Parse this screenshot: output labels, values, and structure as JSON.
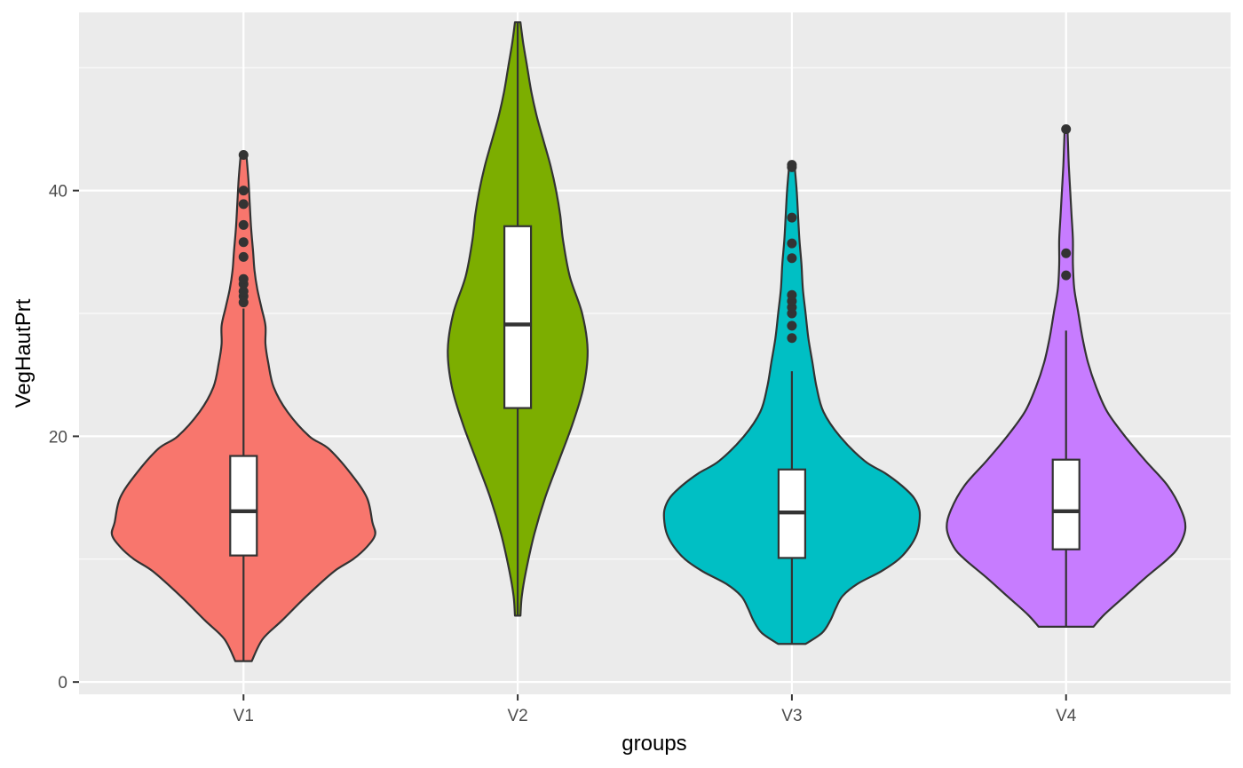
{
  "chart_data": {
    "type": "violin",
    "xlabel": "groups",
    "ylabel": "VegHautPrt",
    "ylim": [
      -1,
      54.5
    ],
    "yticks": [
      0,
      20,
      40
    ],
    "grid": true,
    "background": "#EBEBEB",
    "groups": [
      {
        "name": "V1",
        "color": "#F8766D",
        "violin": {
          "y": [
            1.7,
            3.5,
            5,
            7,
            9,
            10,
            11,
            12,
            13,
            15,
            17,
            19,
            20,
            22,
            24,
            26,
            27.5,
            29,
            30.5,
            32,
            33.5,
            35,
            37,
            39,
            41,
            43
          ],
          "half_width": [
            0.06,
            0.14,
            0.28,
            0.46,
            0.66,
            0.8,
            0.9,
            0.96,
            0.94,
            0.9,
            0.78,
            0.62,
            0.48,
            0.32,
            0.22,
            0.18,
            0.16,
            0.16,
            0.13,
            0.1,
            0.08,
            0.07,
            0.055,
            0.045,
            0.035,
            0.02
          ]
        },
        "box": {
          "lower_whisker": 1.7,
          "q1": 10.3,
          "median": 13.9,
          "q3": 18.4,
          "upper_whisker": 30.4
        },
        "outliers": [
          30.9,
          31.4,
          31.8,
          32.4,
          32.8,
          34.6,
          35.8,
          37.2,
          38.9,
          40.0,
          42.9
        ]
      },
      {
        "name": "V2",
        "color": "#7CAE00",
        "violin": {
          "y": [
            5.4,
            7,
            9,
            12,
            15,
            18,
            21,
            24,
            27,
            30,
            33,
            36,
            38,
            40,
            42,
            44,
            46,
            48,
            50,
            52,
            53.7
          ],
          "half_width": [
            0.02,
            0.03,
            0.06,
            0.12,
            0.2,
            0.3,
            0.4,
            0.48,
            0.51,
            0.47,
            0.38,
            0.33,
            0.31,
            0.28,
            0.24,
            0.19,
            0.14,
            0.1,
            0.07,
            0.04,
            0.02
          ]
        },
        "box": {
          "lower_whisker": 5.4,
          "q1": 22.3,
          "median": 29.1,
          "q3": 37.1,
          "upper_whisker": 53.7
        },
        "outliers": []
      },
      {
        "name": "V3",
        "color": "#00BFC4",
        "violin": {
          "y": [
            3.1,
            4,
            5,
            6,
            7,
            8,
            9,
            10,
            11,
            12,
            13,
            14,
            15,
            16,
            17,
            18,
            20,
            22,
            24,
            26,
            28,
            30,
            32,
            34,
            36,
            38,
            40,
            42
          ],
          "half_width": [
            0.1,
            0.22,
            0.28,
            0.32,
            0.37,
            0.48,
            0.65,
            0.78,
            0.86,
            0.91,
            0.93,
            0.93,
            0.89,
            0.8,
            0.68,
            0.53,
            0.35,
            0.23,
            0.18,
            0.15,
            0.12,
            0.1,
            0.08,
            0.07,
            0.055,
            0.045,
            0.035,
            0.02
          ]
        },
        "box": {
          "lower_whisker": 3.1,
          "q1": 10.1,
          "median": 13.8,
          "q3": 17.3,
          "upper_whisker": 25.3
        },
        "outliers": [
          28.0,
          29.0,
          30.0,
          30.5,
          31.0,
          31.5,
          34.5,
          35.7,
          37.8,
          41.9,
          42.1
        ]
      },
      {
        "name": "V4",
        "color": "#C77CFF",
        "violin": {
          "y": [
            4.5,
            5.5,
            7,
            8.5,
            10,
            11,
            12.5,
            14,
            16,
            18,
            20,
            22,
            24,
            26,
            28,
            30,
            32,
            34,
            36,
            38,
            40,
            42,
            43.5,
            45.1
          ],
          "half_width": [
            0.2,
            0.28,
            0.43,
            0.58,
            0.74,
            0.82,
            0.87,
            0.84,
            0.74,
            0.58,
            0.43,
            0.3,
            0.22,
            0.16,
            0.12,
            0.09,
            0.06,
            0.05,
            0.05,
            0.04,
            0.03,
            0.02,
            0.015,
            0.01
          ]
        },
        "box": {
          "lower_whisker": 4.5,
          "q1": 10.8,
          "median": 13.9,
          "q3": 18.1,
          "upper_whisker": 28.6
        },
        "outliers": [
          33.1,
          34.9,
          45.0
        ]
      }
    ]
  }
}
